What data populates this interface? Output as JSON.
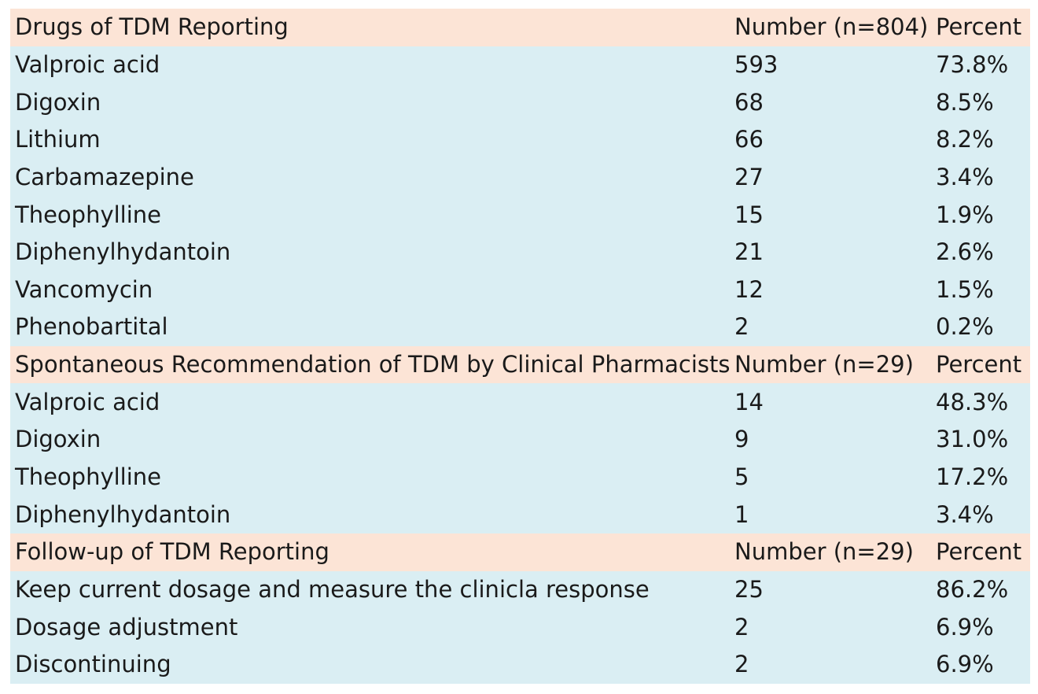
{
  "sections": [
    {
      "header": [
        "Drugs of TDM Reporting",
        "Number (n=804)",
        "Percent"
      ],
      "rows": [
        [
          "Valproic acid",
          "593",
          "73.8%"
        ],
        [
          "Digoxin",
          "68",
          "8.5%"
        ],
        [
          "Lithium",
          "66",
          "8.2%"
        ],
        [
          "Carbamazepine",
          "27",
          "3.4%"
        ],
        [
          "Theophylline",
          "15",
          "1.9%"
        ],
        [
          "Diphenylhydantoin",
          "21",
          "2.6%"
        ],
        [
          "Vancomycin",
          "12",
          "1.5%"
        ],
        [
          "Phenobartital",
          "2",
          "0.2%"
        ]
      ]
    },
    {
      "header": [
        "Spontaneous Recommendation of TDM by Clinical Pharmacists",
        "Number (n=29)",
        "Percent"
      ],
      "rows": [
        [
          "Valproic acid",
          "14",
          "48.3%"
        ],
        [
          "Digoxin",
          "9",
          "31.0%"
        ],
        [
          "Theophylline",
          "5",
          "17.2%"
        ],
        [
          "Diphenylhydantoin",
          "1",
          "3.4%"
        ]
      ]
    },
    {
      "header": [
        "Follow-up of TDM Reporting",
        "Number (n=29)",
        "Percent"
      ],
      "rows": [
        [
          "Keep current dosage and measure the clinicla response",
          "25",
          "86.2%"
        ],
        [
          "Dosage adjustment",
          "2",
          "6.9%"
        ],
        [
          "Discontinuing",
          "2",
          "6.9%"
        ]
      ]
    }
  ],
  "colors": {
    "header_bg": "#fce4d6",
    "row_bg": "#daeef3",
    "text": "#1a1a1a"
  }
}
